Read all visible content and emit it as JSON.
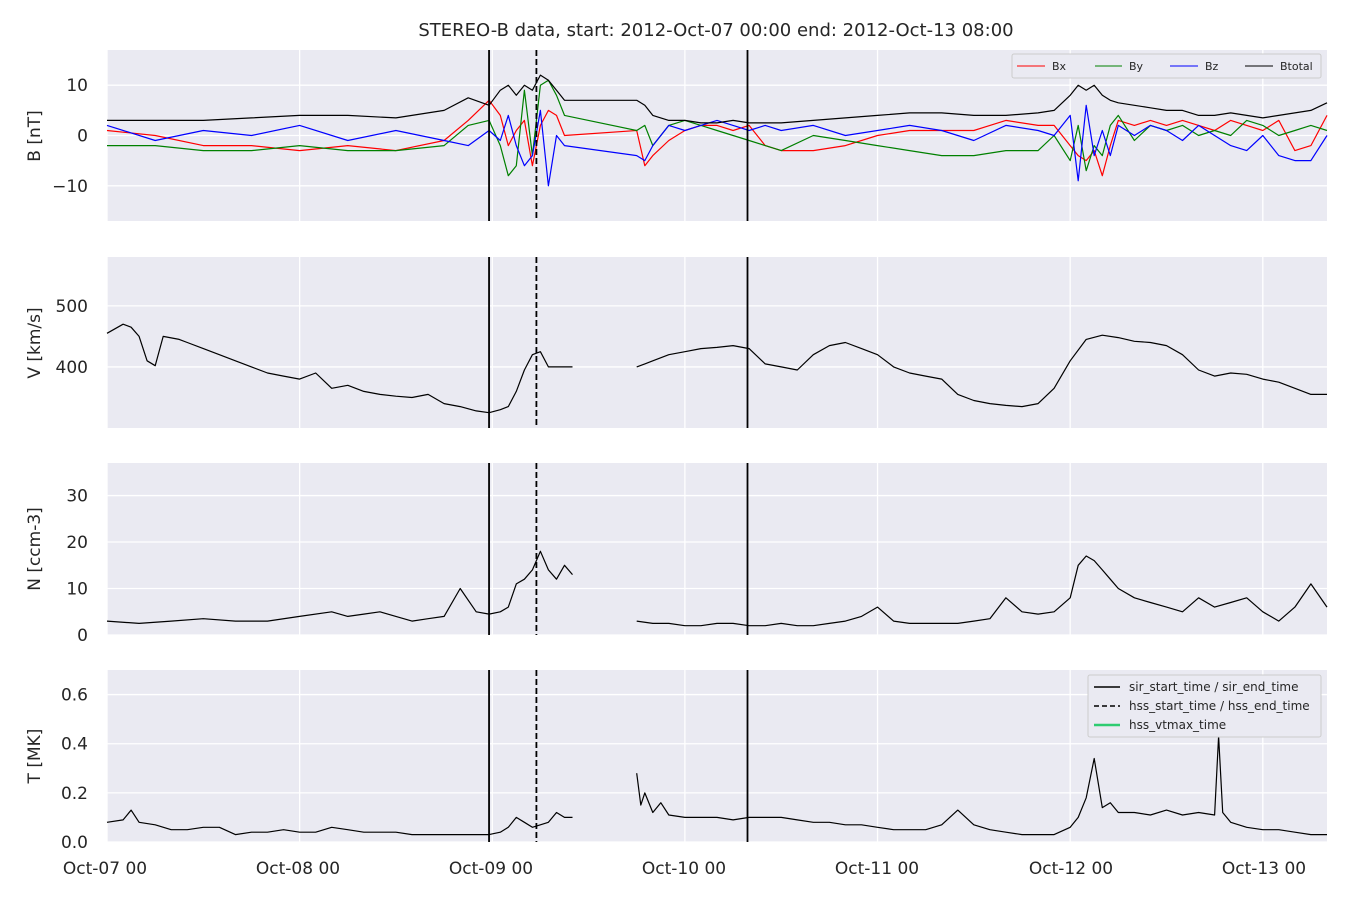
{
  "title": "STEREO-B data, start: 2012-Oct-07 00:00  end: 2012-Oct-13 08:00",
  "x_tick_labels": [
    "Oct-07 00",
    "Oct-08 00",
    "Oct-09 00",
    "Oct-10 00",
    "Oct-11 00",
    "Oct-12 00",
    "Oct-13 00"
  ],
  "colors": {
    "panel_bg": "#eaeaf2",
    "grid": "#ffffff",
    "text": "#262626",
    "bx": "#ff0000",
    "by": "#008000",
    "bz": "#0000ff",
    "btotal": "#000000",
    "event_line": "#000000",
    "hss_vtmax": "#2ecc71"
  },
  "event_markers": [
    {
      "kind": "sir_start_time",
      "time_hours": 47.6,
      "style": "solid"
    },
    {
      "kind": "hss_start_time",
      "time_hours": 53.5,
      "style": "dashed"
    },
    {
      "kind": "sir_end_time",
      "time_hours": 79.8,
      "style": "solid"
    }
  ],
  "legend_mag": [
    "Bx",
    "By",
    "Bz",
    "Btotal"
  ],
  "legend_events": [
    "sir_start_time / sir_end_time",
    "hss_start_time / hss_end_time",
    "hss_vtmax_time"
  ],
  "chart_data": [
    {
      "type": "line",
      "panel": "magnetic_field",
      "ylabel": "B [nT]",
      "xlim_hours": [
        0,
        152
      ],
      "ylim": [
        -17,
        17
      ],
      "yticks": [
        -10,
        0,
        10
      ],
      "ytick_labels": [
        "−10",
        "0",
        "10"
      ],
      "legend_position": "top-right",
      "data_gaps_hours": [
        [
          57,
          66
        ]
      ],
      "series": [
        {
          "name": "Bx",
          "x_hours": [
            0,
            6,
            12,
            18,
            24,
            30,
            36,
            42,
            45,
            47.6,
            49,
            50,
            51,
            52,
            53,
            54,
            55,
            56,
            57,
            66,
            67,
            68,
            70,
            72,
            74,
            76,
            78,
            80,
            82,
            84,
            88,
            92,
            96,
            100,
            104,
            108,
            112,
            116,
            118,
            120,
            121,
            122,
            123,
            124,
            125,
            126,
            128,
            130,
            132,
            134,
            136,
            138,
            140,
            142,
            144,
            146,
            148,
            150,
            152
          ],
          "values": [
            1,
            0,
            -2,
            -2,
            -3,
            -2,
            -3,
            -1,
            3,
            7,
            4,
            -2,
            1,
            3,
            -6,
            2,
            5,
            4,
            0,
            1,
            -6,
            -4,
            -1,
            1,
            2,
            2,
            1,
            2,
            -2,
            -3,
            -3,
            -2,
            0,
            1,
            1,
            1,
            3,
            2,
            2,
            -2,
            -4,
            -5,
            -3,
            -8,
            -2,
            3,
            2,
            3,
            2,
            3,
            2,
            1,
            3,
            2,
            1,
            3,
            -3,
            -2,
            4
          ]
        },
        {
          "name": "By",
          "x_hours": [
            0,
            6,
            12,
            18,
            24,
            30,
            36,
            42,
            45,
            47.6,
            49,
            50,
            51,
            52,
            53,
            54,
            55,
            56,
            57,
            66,
            67,
            68,
            70,
            72,
            74,
            76,
            78,
            80,
            82,
            84,
            88,
            92,
            96,
            100,
            104,
            108,
            112,
            116,
            118,
            120,
            121,
            122,
            123,
            124,
            125,
            126,
            128,
            130,
            132,
            134,
            136,
            138,
            140,
            142,
            144,
            146,
            148,
            150,
            152
          ],
          "values": [
            -2,
            -2,
            -3,
            -3,
            -2,
            -3,
            -3,
            -2,
            2,
            3,
            -2,
            -8,
            -6,
            9,
            -4,
            10,
            11,
            8,
            4,
            1,
            2,
            -2,
            2,
            3,
            2,
            1,
            0,
            -1,
            -2,
            -3,
            0,
            -1,
            -2,
            -3,
            -4,
            -4,
            -3,
            -3,
            0,
            -5,
            2,
            -7,
            -2,
            -4,
            2,
            4,
            -1,
            2,
            1,
            2,
            0,
            1,
            0,
            3,
            2,
            0,
            1,
            2,
            1
          ]
        },
        {
          "name": "Bz",
          "x_hours": [
            0,
            6,
            12,
            18,
            24,
            30,
            36,
            42,
            45,
            47.6,
            49,
            50,
            51,
            52,
            53,
            54,
            55,
            56,
            57,
            66,
            67,
            68,
            70,
            72,
            74,
            76,
            78,
            80,
            82,
            84,
            88,
            92,
            96,
            100,
            104,
            108,
            112,
            116,
            118,
            120,
            121,
            122,
            123,
            124,
            125,
            126,
            128,
            130,
            132,
            134,
            136,
            138,
            140,
            142,
            144,
            146,
            148,
            150,
            152
          ],
          "values": [
            2,
            -1,
            1,
            0,
            2,
            -1,
            1,
            -1,
            -2,
            1,
            -1,
            4,
            -2,
            -6,
            -4,
            5,
            -10,
            0,
            -2,
            -4,
            -5,
            -2,
            2,
            1,
            2,
            3,
            2,
            1,
            2,
            1,
            2,
            0,
            1,
            2,
            1,
            -1,
            2,
            1,
            0,
            4,
            -9,
            6,
            -4,
            1,
            -4,
            2,
            0,
            2,
            1,
            -1,
            2,
            0,
            -2,
            -3,
            0,
            -4,
            -5,
            -5,
            0
          ]
        },
        {
          "name": "Btotal",
          "x_hours": [
            0,
            6,
            12,
            18,
            24,
            30,
            36,
            42,
            45,
            47.6,
            49,
            50,
            51,
            52,
            53,
            54,
            55,
            56,
            57,
            66,
            67,
            68,
            70,
            72,
            74,
            76,
            78,
            80,
            82,
            84,
            88,
            92,
            96,
            100,
            104,
            108,
            112,
            116,
            118,
            120,
            121,
            122,
            123,
            124,
            125,
            126,
            128,
            130,
            132,
            134,
            136,
            138,
            140,
            142,
            144,
            146,
            148,
            150,
            152
          ],
          "values": [
            3,
            3,
            3,
            3.5,
            4,
            4,
            3.5,
            5,
            7.5,
            6,
            9,
            10,
            8,
            10,
            9,
            12,
            11,
            9,
            7,
            7,
            6,
            4,
            3,
            3,
            2.5,
            2.5,
            3,
            2.5,
            2.5,
            2.5,
            3,
            3.5,
            4,
            4.5,
            4.5,
            4,
            4,
            4.5,
            5,
            8,
            10,
            9,
            10,
            8,
            7,
            6.5,
            6,
            5.5,
            5,
            5,
            4,
            4,
            4.5,
            4,
            3.5,
            4,
            4.5,
            5,
            6.5
          ]
        }
      ]
    },
    {
      "type": "line",
      "panel": "speed",
      "ylabel": "V [km/s]",
      "xlim_hours": [
        0,
        152
      ],
      "ylim": [
        300,
        580
      ],
      "yticks": [
        400,
        500
      ],
      "data_gaps_hours": [
        [
          58,
          66
        ]
      ],
      "series": [
        {
          "x_hours": [
            0,
            2,
            3,
            4,
            5,
            6,
            7,
            9,
            10,
            12,
            14,
            16,
            18,
            20,
            22,
            24,
            26,
            28,
            30,
            32,
            34,
            36,
            38,
            40,
            42,
            44,
            46,
            47.6,
            49,
            50,
            51,
            52,
            53,
            54,
            55,
            56,
            57,
            58,
            66,
            67,
            68,
            70,
            72,
            74,
            76,
            78,
            80,
            82,
            84,
            86,
            88,
            90,
            92,
            94,
            96,
            98,
            100,
            102,
            104,
            106,
            108,
            110,
            112,
            114,
            116,
            118,
            120,
            122,
            124,
            126,
            128,
            130,
            132,
            134,
            136,
            138,
            140,
            142,
            144,
            146,
            148,
            150,
            152
          ],
          "values": [
            455,
            470,
            465,
            450,
            410,
            402,
            450,
            445,
            440,
            430,
            420,
            410,
            400,
            390,
            385,
            380,
            390,
            365,
            370,
            360,
            355,
            352,
            350,
            355,
            340,
            335,
            328,
            325,
            330,
            335,
            360,
            395,
            420,
            425,
            400,
            400,
            400,
            400,
            400,
            405,
            410,
            420,
            425,
            430,
            432,
            435,
            430,
            405,
            400,
            395,
            420,
            435,
            440,
            430,
            420,
            400,
            390,
            385,
            380,
            355,
            345,
            340,
            337,
            335,
            340,
            365,
            410,
            445,
            452,
            448,
            442,
            440,
            435,
            420,
            395,
            385,
            390,
            388,
            380,
            375,
            365,
            355,
            355
          ]
        }
      ]
    },
    {
      "type": "line",
      "panel": "density",
      "ylabel": "N [ccm-3]",
      "xlim_hours": [
        0,
        152
      ],
      "ylim": [
        0,
        37
      ],
      "yticks": [
        0,
        10,
        20,
        30
      ],
      "data_gaps_hours": [
        [
          58,
          66
        ]
      ],
      "series": [
        {
          "x_hours": [
            0,
            4,
            8,
            12,
            16,
            20,
            24,
            28,
            30,
            32,
            34,
            36,
            38,
            40,
            42,
            44,
            46,
            47.6,
            49,
            50,
            51,
            52,
            53,
            54,
            55,
            56,
            57,
            58,
            66,
            68,
            70,
            72,
            74,
            76,
            78,
            80,
            82,
            84,
            86,
            88,
            90,
            92,
            94,
            96,
            98,
            100,
            102,
            104,
            106,
            108,
            110,
            112,
            114,
            116,
            118,
            120,
            121,
            122,
            123,
            124,
            125,
            126,
            128,
            130,
            132,
            134,
            136,
            138,
            140,
            142,
            144,
            146,
            148,
            150,
            152
          ],
          "values": [
            3,
            2.5,
            3,
            3.5,
            3,
            3,
            4,
            5,
            4,
            4.5,
            5,
            4,
            3,
            3.5,
            4,
            10,
            5,
            4.5,
            5,
            6,
            11,
            12,
            14,
            18,
            14,
            12,
            15,
            13,
            3,
            2.5,
            2.5,
            2,
            2,
            2.5,
            2.5,
            2,
            2,
            2.5,
            2,
            2,
            2.5,
            3,
            4,
            6,
            3,
            2.5,
            2.5,
            2.5,
            2.5,
            3,
            3.5,
            8,
            5,
            4.5,
            5,
            8,
            15,
            17,
            16,
            14,
            12,
            10,
            8,
            7,
            6,
            5,
            8,
            6,
            7,
            8,
            5,
            3,
            6,
            11,
            6
          ]
        }
      ]
    },
    {
      "type": "line",
      "panel": "temperature",
      "ylabel": "T [MK]",
      "xlim_hours": [
        0,
        152
      ],
      "ylim": [
        0,
        0.7
      ],
      "yticks": [
        0.0,
        0.2,
        0.4,
        0.6
      ],
      "ytick_labels": [
        "0.0",
        "0.2",
        "0.4",
        "0.6"
      ],
      "legend_position": "top-right",
      "data_gaps_hours": [
        [
          58,
          66
        ]
      ],
      "series": [
        {
          "x_hours": [
            0,
            2,
            3,
            4,
            6,
            8,
            10,
            12,
            14,
            16,
            18,
            20,
            22,
            24,
            26,
            28,
            30,
            32,
            34,
            36,
            38,
            40,
            42,
            44,
            46,
            47.6,
            49,
            50,
            51,
            52,
            53,
            54,
            55,
            56,
            57,
            58,
            66,
            66.5,
            67,
            68,
            69,
            70,
            72,
            74,
            76,
            78,
            80,
            82,
            84,
            86,
            88,
            90,
            92,
            94,
            96,
            98,
            100,
            102,
            104,
            106,
            108,
            110,
            112,
            114,
            116,
            118,
            120,
            121,
            122,
            123,
            124,
            125,
            126,
            128,
            130,
            132,
            134,
            136,
            138,
            138.5,
            139,
            140,
            142,
            144,
            146,
            148,
            150,
            152
          ],
          "values": [
            0.08,
            0.09,
            0.13,
            0.08,
            0.07,
            0.05,
            0.05,
            0.06,
            0.06,
            0.03,
            0.04,
            0.04,
            0.05,
            0.04,
            0.04,
            0.06,
            0.05,
            0.04,
            0.04,
            0.04,
            0.03,
            0.03,
            0.03,
            0.03,
            0.03,
            0.03,
            0.04,
            0.06,
            0.1,
            0.08,
            0.06,
            0.07,
            0.08,
            0.12,
            0.1,
            0.1,
            0.28,
            0.15,
            0.2,
            0.12,
            0.16,
            0.11,
            0.1,
            0.1,
            0.1,
            0.09,
            0.1,
            0.1,
            0.1,
            0.09,
            0.08,
            0.08,
            0.07,
            0.07,
            0.06,
            0.05,
            0.05,
            0.05,
            0.07,
            0.13,
            0.07,
            0.05,
            0.04,
            0.03,
            0.03,
            0.03,
            0.06,
            0.1,
            0.18,
            0.34,
            0.14,
            0.16,
            0.12,
            0.12,
            0.11,
            0.13,
            0.11,
            0.12,
            0.11,
            0.43,
            0.12,
            0.08,
            0.06,
            0.05,
            0.05,
            0.04,
            0.03,
            0.03
          ]
        }
      ]
    }
  ]
}
